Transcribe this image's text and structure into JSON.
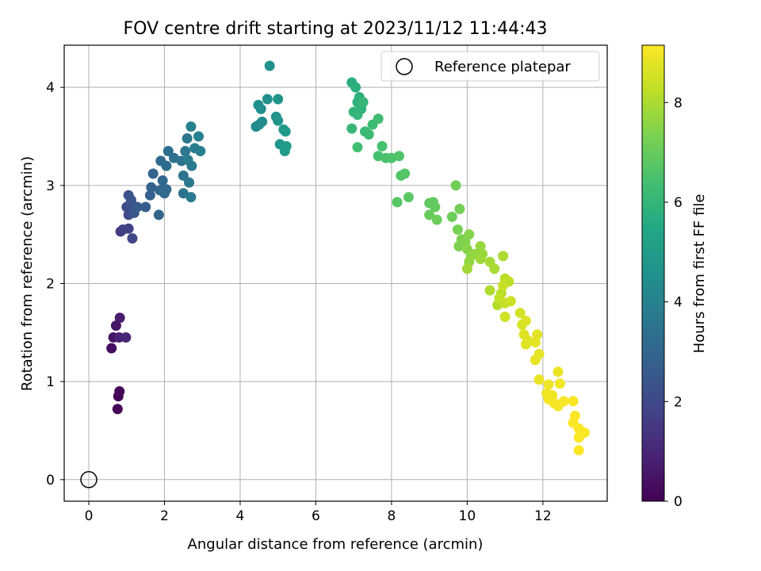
{
  "chart_data": {
    "type": "scatter",
    "title": "FOV centre drift starting at 2023/11/12 11:44:43",
    "xlabel": "Angular distance from reference (arcmin)",
    "ylabel": "Rotation from reference (arcmin)",
    "xlim": [
      -0.65,
      13.7
    ],
    "ylim": [
      -0.22,
      4.43
    ],
    "xticks": [
      0,
      2,
      4,
      6,
      8,
      10,
      12
    ],
    "yticks": [
      0,
      1,
      2,
      3,
      4
    ],
    "grid": true,
    "legend_position": "upper right",
    "colorbar": {
      "label": "Hours from first FF file",
      "colormap": "viridis",
      "range": [
        0,
        9.15
      ],
      "ticks": [
        0,
        2,
        4,
        6,
        8
      ]
    },
    "reference": {
      "name": "Reference platepar",
      "x": 0,
      "y": 0
    },
    "series": [
      {
        "marker": "filled circle, colored by hours",
        "points": [
          [
            0.76,
            0.72,
            0.05
          ],
          [
            0.78,
            0.85,
            0.1
          ],
          [
            0.81,
            0.9,
            0.15
          ],
          [
            0.6,
            1.34,
            0.35
          ],
          [
            0.65,
            1.45,
            0.45
          ],
          [
            0.72,
            1.57,
            0.55
          ],
          [
            0.82,
            1.65,
            0.7
          ],
          [
            0.8,
            1.45,
            0.85
          ],
          [
            0.98,
            1.45,
            0.95
          ],
          [
            0.84,
            2.53,
            1.6
          ],
          [
            0.9,
            2.55,
            1.7
          ],
          [
            1.05,
            2.56,
            1.8
          ],
          [
            1.15,
            2.46,
            1.9
          ],
          [
            1.05,
            2.7,
            2.0
          ],
          [
            1.0,
            2.78,
            2.1
          ],
          [
            1.1,
            2.82,
            2.2
          ],
          [
            1.05,
            2.9,
            2.3
          ],
          [
            1.12,
            2.85,
            2.4
          ],
          [
            1.2,
            2.72,
            2.5
          ],
          [
            1.28,
            2.78,
            2.6
          ],
          [
            1.5,
            2.78,
            2.7
          ],
          [
            1.62,
            2.9,
            2.8
          ],
          [
            1.65,
            2.98,
            2.85
          ],
          [
            1.7,
            3.12,
            2.9
          ],
          [
            1.85,
            2.7,
            2.95
          ],
          [
            1.88,
            2.95,
            3.0
          ],
          [
            1.95,
            3.05,
            3.05
          ],
          [
            2.0,
            2.92,
            3.1
          ],
          [
            2.05,
            2.96,
            3.15
          ],
          [
            1.9,
            3.25,
            3.2
          ],
          [
            2.05,
            3.2,
            3.25
          ],
          [
            2.1,
            3.35,
            3.3
          ],
          [
            2.25,
            3.28,
            3.35
          ],
          [
            2.45,
            3.25,
            3.4
          ],
          [
            2.5,
            3.1,
            3.45
          ],
          [
            2.5,
            2.92,
            3.5
          ],
          [
            2.55,
            3.35,
            3.55
          ],
          [
            2.6,
            3.48,
            3.6
          ],
          [
            2.65,
            3.03,
            3.65
          ],
          [
            2.7,
            2.88,
            3.7
          ],
          [
            2.72,
            3.2,
            3.75
          ],
          [
            2.62,
            3.26,
            3.8
          ],
          [
            2.8,
            3.38,
            3.85
          ],
          [
            2.95,
            3.35,
            3.9
          ],
          [
            2.9,
            3.5,
            3.95
          ],
          [
            2.7,
            3.6,
            4.0
          ],
          [
            4.42,
            3.6,
            4.3
          ],
          [
            4.5,
            3.62,
            4.35
          ],
          [
            4.58,
            3.65,
            4.4
          ],
          [
            4.48,
            3.82,
            4.45
          ],
          [
            4.55,
            3.78,
            4.5
          ],
          [
            4.72,
            3.88,
            4.55
          ],
          [
            4.78,
            4.22,
            4.6
          ],
          [
            4.95,
            3.7,
            4.65
          ],
          [
            5.0,
            3.66,
            4.7
          ],
          [
            5.0,
            3.88,
            4.75
          ],
          [
            5.05,
            3.42,
            4.8
          ],
          [
            5.15,
            3.57,
            4.85
          ],
          [
            5.2,
            3.55,
            4.9
          ],
          [
            5.18,
            3.35,
            4.95
          ],
          [
            5.22,
            3.4,
            5.0
          ],
          [
            6.95,
            4.05,
            5.7
          ],
          [
            7.05,
            4.0,
            5.75
          ],
          [
            7.15,
            3.9,
            5.8
          ],
          [
            7.1,
            3.85,
            5.85
          ],
          [
            7.2,
            3.78,
            5.9
          ],
          [
            7.0,
            3.75,
            5.95
          ],
          [
            7.1,
            3.72,
            6.0
          ],
          [
            7.25,
            3.85,
            6.05
          ],
          [
            6.95,
            3.58,
            6.1
          ],
          [
            7.3,
            3.55,
            6.15
          ],
          [
            7.4,
            3.52,
            6.2
          ],
          [
            7.5,
            3.62,
            6.25
          ],
          [
            7.65,
            3.68,
            6.3
          ],
          [
            7.1,
            3.39,
            6.35
          ],
          [
            7.65,
            3.3,
            6.4
          ],
          [
            7.75,
            3.4,
            6.45
          ],
          [
            7.85,
            3.28,
            6.5
          ],
          [
            8.0,
            3.28,
            6.55
          ],
          [
            8.2,
            3.3,
            6.6
          ],
          [
            8.25,
            3.1,
            6.65
          ],
          [
            8.35,
            3.12,
            6.7
          ],
          [
            8.15,
            2.83,
            6.75
          ],
          [
            8.45,
            2.88,
            6.8
          ],
          [
            9.0,
            2.82,
            6.85
          ],
          [
            9.1,
            2.83,
            6.9
          ],
          [
            9.15,
            2.78,
            6.95
          ],
          [
            9.0,
            2.7,
            7.0
          ],
          [
            9.2,
            2.65,
            7.05
          ],
          [
            9.6,
            2.68,
            7.1
          ],
          [
            9.7,
            3.0,
            7.15
          ],
          [
            9.8,
            2.76,
            7.2
          ],
          [
            9.75,
            2.55,
            7.25
          ],
          [
            9.85,
            2.45,
            7.3
          ],
          [
            9.78,
            2.38,
            7.35
          ],
          [
            9.95,
            2.42,
            7.4
          ],
          [
            10.05,
            2.5,
            7.45
          ],
          [
            10.0,
            2.35,
            7.5
          ],
          [
            10.1,
            2.28,
            7.55
          ],
          [
            10.05,
            2.22,
            7.6
          ],
          [
            10.2,
            2.3,
            7.65
          ],
          [
            10.35,
            2.38,
            7.7
          ],
          [
            10.4,
            2.3,
            7.75
          ],
          [
            10.35,
            2.25,
            7.8
          ],
          [
            10.0,
            2.15,
            7.85
          ],
          [
            10.6,
            2.22,
            7.9
          ],
          [
            10.72,
            2.15,
            7.95
          ],
          [
            10.95,
            2.28,
            8.0
          ],
          [
            10.6,
            1.93,
            8.05
          ],
          [
            10.8,
            1.78,
            8.1
          ],
          [
            10.9,
            1.9,
            8.15
          ],
          [
            11.0,
            2.05,
            8.2
          ],
          [
            11.1,
            2.02,
            8.25
          ],
          [
            10.85,
            1.85,
            8.3
          ],
          [
            11.0,
            1.8,
            8.35
          ],
          [
            10.95,
            1.98,
            8.4
          ],
          [
            11.15,
            1.82,
            8.45
          ],
          [
            11.0,
            1.66,
            8.5
          ],
          [
            11.4,
            1.7,
            8.55
          ],
          [
            11.45,
            1.58,
            8.6
          ],
          [
            11.55,
            1.62,
            8.65
          ],
          [
            11.5,
            1.48,
            8.7
          ],
          [
            11.55,
            1.38,
            8.72
          ],
          [
            11.6,
            1.42,
            8.75
          ],
          [
            11.85,
            1.48,
            8.78
          ],
          [
            11.8,
            1.4,
            8.8
          ],
          [
            11.9,
            1.28,
            8.82
          ],
          [
            11.8,
            1.22,
            8.85
          ],
          [
            11.9,
            1.02,
            8.88
          ],
          [
            12.4,
            1.1,
            8.9
          ],
          [
            12.15,
            0.97,
            8.92
          ],
          [
            12.1,
            0.88,
            8.94
          ],
          [
            12.25,
            0.86,
            8.96
          ],
          [
            12.45,
            0.98,
            8.98
          ],
          [
            12.15,
            0.82,
            9.0
          ],
          [
            12.3,
            0.78,
            9.02
          ],
          [
            12.4,
            0.75,
            9.04
          ],
          [
            12.55,
            0.8,
            9.06
          ],
          [
            12.8,
            0.8,
            9.08
          ],
          [
            12.85,
            0.65,
            9.1
          ],
          [
            12.8,
            0.58,
            9.11
          ],
          [
            12.95,
            0.52,
            9.12
          ],
          [
            12.95,
            0.43,
            9.13
          ],
          [
            13.1,
            0.48,
            9.14
          ],
          [
            12.95,
            0.3,
            9.15
          ]
        ]
      }
    ]
  }
}
